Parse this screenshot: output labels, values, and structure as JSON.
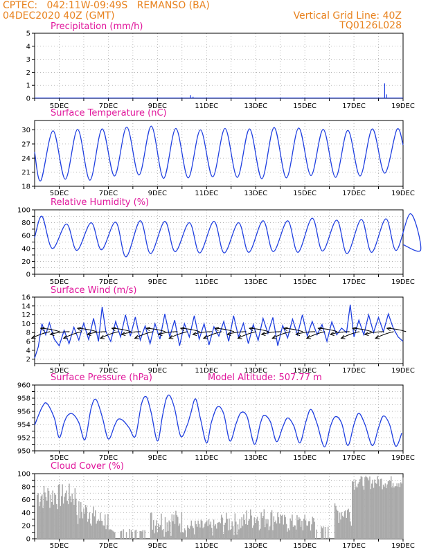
{
  "header": {
    "line1": "CPTEC:   042:11W-09:49S   REMANSO (BA)",
    "line2": "04DEC2020 40Z (GMT)",
    "right1": "Vertical Grid Line: 40Z",
    "right2": "TQ0126L028"
  },
  "colors": {
    "header": "#e8821e",
    "title": "#e0169b",
    "line": "#1f3fe0",
    "bar": "#a9a9a9",
    "wind_arrow": "#000000"
  },
  "chart_data": [
    {
      "type": "bar",
      "title": "Precipitation (mm/h)",
      "x_tick_labels": [
        "5DEC",
        "7DEC",
        "9DEC",
        "11DEC",
        "13DEC",
        "15DEC",
        "17DEC",
        "19DEC"
      ],
      "ylim": [
        0,
        5
      ],
      "y_ticks": [
        0,
        1,
        2,
        3,
        4,
        5
      ],
      "grid": "dotted",
      "values": [
        {
          "day": 4.15,
          "value": 0.03
        },
        {
          "day": 4.5,
          "value": 0.02
        },
        {
          "day": 5.2,
          "value": 0.04
        },
        {
          "day": 6.0,
          "value": 0.03
        },
        {
          "day": 10.35,
          "value": 0.25
        },
        {
          "day": 10.45,
          "value": 0.12
        },
        {
          "day": 12.6,
          "value": 0.03
        },
        {
          "day": 14.9,
          "value": 0.06
        },
        {
          "day": 16.8,
          "value": 0.04
        },
        {
          "day": 18.25,
          "value": 1.15
        },
        {
          "day": 18.33,
          "value": 0.3
        }
      ]
    },
    {
      "type": "line",
      "title": "Surface Temperature (nC)",
      "x_tick_labels": [
        "5DEC",
        "7DEC",
        "9DEC",
        "11DEC",
        "13DEC",
        "15DEC",
        "17DEC",
        "19DEC"
      ],
      "ylim": [
        18,
        32
      ],
      "y_ticks": [
        18,
        21,
        24,
        27,
        30
      ],
      "grid": "dotted",
      "daily_min": [
        19.2,
        19.5,
        19.3,
        20.2,
        20.4,
        19.7,
        19.8,
        20.0,
        19.9,
        19.6,
        19.8,
        20.3,
        19.9,
        20.2,
        20.8
      ],
      "daily_max": [
        29.8,
        30.1,
        30.2,
        30.6,
        30.8,
        30.3,
        30.0,
        30.3,
        30.2,
        30.5,
        30.4,
        30.1,
        29.9,
        30.2,
        30.1
      ],
      "start_value": 25.3,
      "end_value": 26.8
    },
    {
      "type": "line",
      "title": "Relative Humidity (%)",
      "x_tick_labels": [
        "5DEC",
        "7DEC",
        "9DEC",
        "11DEC",
        "13DEC",
        "15DEC",
        "17DEC",
        "19DEC"
      ],
      "ylim": [
        0,
        100
      ],
      "y_ticks": [
        0,
        10,
        20,
        30,
        40,
        50,
        60,
        70,
        80,
        90,
        100
      ],
      "y_tick_labels": [
        0,
        20,
        40,
        60,
        80,
        100
      ],
      "grid": "dotted",
      "daily_max": [
        90,
        78,
        80,
        81,
        83,
        82,
        80,
        82,
        80,
        83,
        83,
        87,
        84,
        85,
        86,
        94
      ],
      "daily_min": [
        40,
        37,
        38,
        27,
        32,
        35,
        33,
        33,
        34,
        35,
        34,
        36,
        32,
        34,
        37,
        38
      ],
      "start_value": 57,
      "end_value": 46
    },
    {
      "type": "line",
      "title": "Surface Wind (m/s)",
      "x_tick_labels": [
        "5DEC",
        "7DEC",
        "9DEC",
        "11DEC",
        "13DEC",
        "15DEC",
        "17DEC",
        "19DEC"
      ],
      "ylim": [
        1,
        16
      ],
      "y_ticks": [
        2,
        4,
        6,
        8,
        10,
        12,
        14,
        16
      ],
      "grid": "dotted",
      "speed_profile": [
        [
          4.0,
          2.2
        ],
        [
          4.15,
          4.8
        ],
        [
          4.3,
          10.0
        ],
        [
          4.45,
          7.5
        ],
        [
          4.6,
          10.2
        ],
        [
          4.8,
          6.5
        ],
        [
          5.0,
          5.0
        ],
        [
          5.2,
          8.5
        ],
        [
          5.4,
          5.5
        ],
        [
          5.6,
          9.2
        ],
        [
          5.8,
          6.3
        ],
        [
          6.0,
          10.1
        ],
        [
          6.2,
          6.4
        ],
        [
          6.4,
          11.2
        ],
        [
          6.6,
          6.0
        ],
        [
          6.75,
          13.8
        ],
        [
          6.9,
          8.2
        ],
        [
          7.1,
          6.0
        ],
        [
          7.3,
          10.5
        ],
        [
          7.5,
          7.0
        ],
        [
          7.7,
          12.0
        ],
        [
          7.9,
          7.2
        ],
        [
          8.1,
          11.5
        ],
        [
          8.3,
          6.3
        ],
        [
          8.5,
          9.5
        ],
        [
          8.7,
          5.5
        ],
        [
          8.9,
          10.0
        ],
        [
          9.1,
          6.5
        ],
        [
          9.3,
          12.2
        ],
        [
          9.5,
          7.0
        ],
        [
          9.7,
          10.8
        ],
        [
          9.9,
          5.0
        ],
        [
          10.1,
          10.0
        ],
        [
          10.3,
          7.0
        ],
        [
          10.5,
          11.8
        ],
        [
          10.7,
          6.5
        ],
        [
          10.9,
          10.0
        ],
        [
          11.1,
          5.2
        ],
        [
          11.3,
          9.3
        ],
        [
          11.5,
          7.2
        ],
        [
          11.7,
          10.5
        ],
        [
          11.9,
          6.0
        ],
        [
          12.1,
          11.8
        ],
        [
          12.3,
          7.0
        ],
        [
          12.5,
          10.1
        ],
        [
          12.7,
          5.5
        ],
        [
          12.9,
          9.8
        ],
        [
          13.1,
          6.2
        ],
        [
          13.3,
          11.2
        ],
        [
          13.5,
          7.8
        ],
        [
          13.7,
          11.4
        ],
        [
          13.9,
          5.0
        ],
        [
          14.1,
          9.6
        ],
        [
          14.3,
          6.8
        ],
        [
          14.5,
          11.0
        ],
        [
          14.7,
          7.5
        ],
        [
          14.9,
          12.0
        ],
        [
          15.1,
          7.2
        ],
        [
          15.3,
          10.5
        ],
        [
          15.5,
          7.5
        ],
        [
          15.7,
          9.8
        ],
        [
          15.9,
          6.0
        ],
        [
          16.1,
          10.4
        ],
        [
          16.3,
          7.5
        ],
        [
          16.5,
          9.0
        ],
        [
          16.7,
          8.0
        ],
        [
          16.85,
          14.3
        ],
        [
          17.0,
          7.0
        ],
        [
          17.2,
          10.8
        ],
        [
          17.4,
          7.5
        ],
        [
          17.6,
          12.0
        ],
        [
          17.8,
          8.0
        ],
        [
          18.0,
          11.4
        ],
        [
          18.2,
          8.2
        ],
        [
          18.4,
          12.2
        ],
        [
          18.6,
          9.0
        ],
        [
          18.8,
          7.0
        ],
        [
          19.0,
          6.0
        ]
      ],
      "arrows": [
        4.0,
        4.4,
        4.8,
        5.3,
        5.9,
        6.3,
        6.8,
        7.3,
        7.7,
        8.2,
        8.7,
        9.2,
        9.6,
        10.1,
        10.6,
        11.0,
        11.5,
        12.0,
        12.4,
        12.9,
        13.4,
        13.8,
        14.3,
        14.8,
        15.2,
        15.7,
        16.2,
        16.6,
        17.1,
        17.6,
        18.0,
        18.5
      ]
    },
    {
      "type": "line",
      "title": "Surface Pressure (hPa)",
      "annotation": "Model Altitude: 507.77 m",
      "x_tick_labels": [
        "5DEC",
        "7DEC",
        "9DEC",
        "11DEC",
        "13DEC",
        "15DEC",
        "17DEC",
        "19DEC"
      ],
      "ylim": [
        950,
        960
      ],
      "y_ticks": [
        950,
        951,
        952,
        953,
        954,
        955,
        956,
        957,
        958,
        959,
        960
      ],
      "y_tick_labels": [
        950,
        952,
        954,
        956,
        958,
        960
      ],
      "grid": "dotted",
      "profile": [
        [
          4.0,
          953.9
        ],
        [
          4.3,
          956.6
        ],
        [
          4.5,
          957.2
        ],
        [
          4.8,
          955.0
        ],
        [
          5.0,
          952.0
        ],
        [
          5.2,
          954.3
        ],
        [
          5.35,
          955.4
        ],
        [
          5.55,
          955.6
        ],
        [
          5.8,
          954.3
        ],
        [
          6.05,
          951.7
        ],
        [
          6.3,
          956.5
        ],
        [
          6.5,
          957.8
        ],
        [
          6.75,
          955.2
        ],
        [
          7.0,
          951.8
        ],
        [
          7.25,
          953.8
        ],
        [
          7.4,
          954.8
        ],
        [
          7.6,
          954.6
        ],
        [
          7.85,
          953.5
        ],
        [
          8.1,
          952.2
        ],
        [
          8.35,
          957.1
        ],
        [
          8.55,
          958.2
        ],
        [
          8.75,
          955.7
        ],
        [
          9.0,
          951.5
        ],
        [
          9.2,
          955.2
        ],
        [
          9.35,
          957.8
        ],
        [
          9.5,
          958.4
        ],
        [
          9.7,
          956.4
        ],
        [
          9.95,
          952.2
        ],
        [
          10.2,
          953.8
        ],
        [
          10.35,
          955.6
        ],
        [
          10.55,
          957.9
        ],
        [
          10.75,
          954.9
        ],
        [
          11.0,
          951.2
        ],
        [
          11.2,
          954.4
        ],
        [
          11.45,
          956.7
        ],
        [
          11.7,
          955.6
        ],
        [
          11.95,
          951.5
        ],
        [
          12.2,
          954.1
        ],
        [
          12.4,
          955.8
        ],
        [
          12.65,
          955.2
        ],
        [
          12.95,
          951.0
        ],
        [
          13.2,
          954.3
        ],
        [
          13.35,
          955.4
        ],
        [
          13.6,
          954.4
        ],
        [
          13.85,
          951.4
        ],
        [
          14.1,
          953.6
        ],
        [
          14.3,
          955.0
        ],
        [
          14.55,
          953.8
        ],
        [
          14.8,
          951.2
        ],
        [
          15.05,
          954.5
        ],
        [
          15.25,
          956.3
        ],
        [
          15.5,
          954.1
        ],
        [
          15.8,
          950.6
        ],
        [
          16.05,
          953.8
        ],
        [
          16.25,
          955.2
        ],
        [
          16.5,
          954.2
        ],
        [
          16.75,
          950.8
        ],
        [
          17.0,
          954.0
        ],
        [
          17.2,
          955.7
        ],
        [
          17.45,
          954.0
        ],
        [
          17.75,
          950.8
        ],
        [
          18.0,
          953.5
        ],
        [
          18.2,
          955.3
        ],
        [
          18.45,
          954.0
        ],
        [
          18.7,
          950.7
        ],
        [
          18.95,
          952.7
        ]
      ]
    },
    {
      "type": "bar",
      "title": "Cloud Cover (%)",
      "x_tick_labels": [
        "5DEC",
        "7DEC",
        "9DEC",
        "11DEC",
        "13DEC",
        "15DEC",
        "17DEC",
        "19DEC"
      ],
      "ylim": [
        0,
        100
      ],
      "y_ticks": [
        0,
        10,
        20,
        30,
        40,
        50,
        60,
        70,
        80,
        90,
        100
      ],
      "y_tick_labels": [
        0,
        20,
        40,
        60,
        80,
        100
      ],
      "grid": "dotted",
      "segments": [
        {
          "from": 4.0,
          "to": 5.7,
          "high": 85,
          "low": 40
        },
        {
          "from": 5.7,
          "to": 6.4,
          "high": 60,
          "low": 15
        },
        {
          "from": 6.4,
          "to": 7.0,
          "high": 45,
          "low": 5
        },
        {
          "from": 7.0,
          "to": 8.7,
          "high": 15,
          "low": 0
        },
        {
          "from": 8.7,
          "to": 10.1,
          "high": 45,
          "low": 3
        },
        {
          "from": 10.1,
          "to": 11.5,
          "high": 30,
          "low": 0
        },
        {
          "from": 11.5,
          "to": 12.6,
          "high": 40,
          "low": 3
        },
        {
          "from": 12.6,
          "to": 14.0,
          "high": 48,
          "low": 10
        },
        {
          "from": 14.0,
          "to": 15.4,
          "high": 38,
          "low": 5
        },
        {
          "from": 15.4,
          "to": 16.2,
          "high": 20,
          "low": 0
        },
        {
          "from": 16.2,
          "to": 16.9,
          "high": 55,
          "low": 20
        },
        {
          "from": 16.9,
          "to": 19.0,
          "high": 97,
          "low": 75
        }
      ]
    }
  ]
}
